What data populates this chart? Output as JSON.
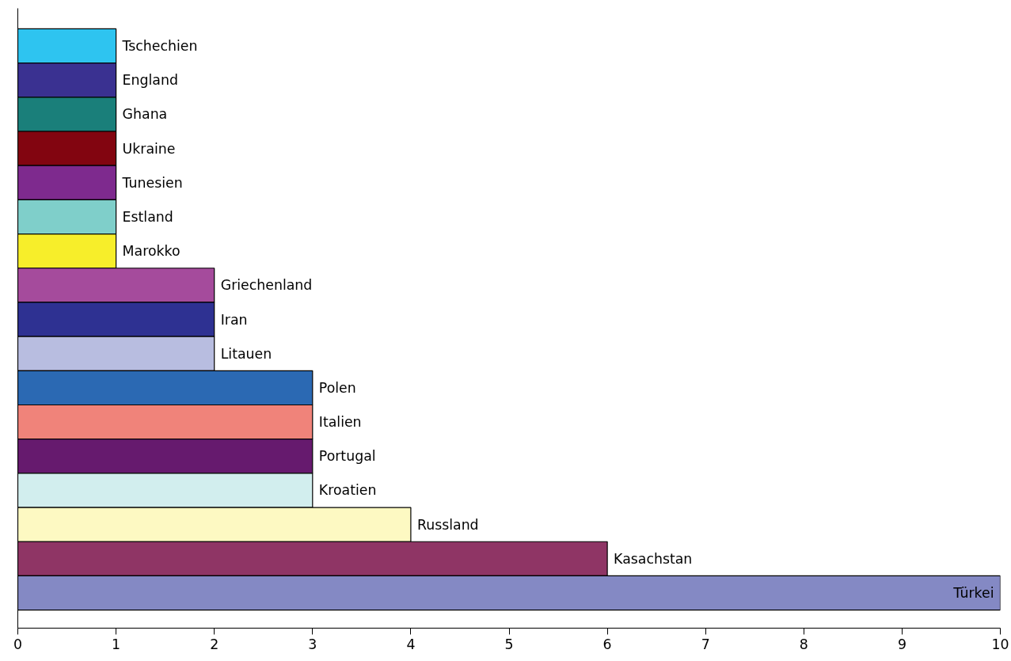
{
  "chart_data": {
    "type": "bar",
    "orientation": "horizontal",
    "categories": [
      "Tschechien",
      "England",
      "Ghana",
      "Ukraine",
      "Tunesien",
      "Estland",
      "Marokko",
      "Griechenland",
      "Iran",
      "Litauen",
      "Polen",
      "Italien",
      "Portugal",
      "Kroatien",
      "Russland",
      "Kasachstan",
      "Türkei"
    ],
    "values": [
      1,
      1,
      1,
      1,
      1,
      1,
      1,
      2,
      2,
      2,
      3,
      3,
      3,
      3,
      4,
      6,
      10
    ],
    "colors": [
      "#2ec4f0",
      "#3a3191",
      "#1a7f7a",
      "#820510",
      "#7e2a8e",
      "#7fcfca",
      "#f7ee2a",
      "#a54b9c",
      "#2e3192",
      "#b8bde0",
      "#2b69b3",
      "#f0837a",
      "#661a6e",
      "#d2eeee",
      "#fdf9c2",
      "#8f3565",
      "#8489c4"
    ],
    "xlim": [
      0,
      10
    ],
    "xticks": [
      0,
      1,
      2,
      3,
      4,
      5,
      6,
      7,
      8,
      9,
      10
    ],
    "tick_labels": "x",
    "grid": false
  }
}
